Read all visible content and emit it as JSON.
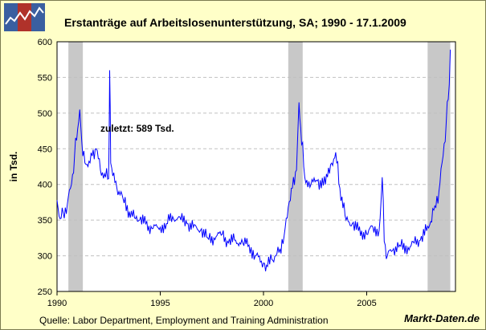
{
  "header": {
    "title": "Erstanträge auf Arbeitslosenunterstützung, SA;  1990 - 17.1.2009",
    "logo_icon": "line-chart-logo-icon"
  },
  "footer": {
    "source": "Quelle: Labor Department, Employment and Training Administration",
    "brand": "Markt-Daten.de"
  },
  "colors": {
    "background": "#FFFFC8",
    "plot_background": "#FFFFFF",
    "series": "#0000FF",
    "recession": "#C8C8C8",
    "grid": "#C0C0C0"
  },
  "chart_data": {
    "type": "line",
    "title": "Erstanträge auf Arbeitslosenunterstützung, SA;  1990 - 17.1.2009",
    "xlabel": "",
    "ylabel": "in Tsd.",
    "xlim": [
      1990,
      2009.3
    ],
    "ylim": [
      250,
      600
    ],
    "x_ticks": [
      1990,
      1995,
      2000,
      2005
    ],
    "y_ticks": [
      250,
      300,
      350,
      400,
      450,
      500,
      550,
      600
    ],
    "grid": "horizontal dashed",
    "annotation": "zuletzt: 589 Tsd.",
    "recessions": [
      [
        1990.55,
        1991.25
      ],
      [
        2001.2,
        2001.9
      ],
      [
        2007.95,
        2009.05
      ]
    ],
    "series": [
      {
        "x": [
          1990.0,
          1990.15,
          1990.3,
          1990.5,
          1990.7,
          1990.85,
          1991.0,
          1991.1,
          1991.2,
          1991.35,
          1991.5,
          1991.7,
          1991.9,
          1992.1,
          1992.3,
          1992.5,
          1992.55,
          1992.6,
          1992.7,
          1992.9,
          1993.2,
          1993.5,
          1993.8,
          1994.0,
          1994.3,
          1994.6,
          1995.0,
          1995.3,
          1995.6,
          1996.0,
          1996.3,
          1996.6,
          1997.0,
          1997.3,
          1997.6,
          1998.0,
          1998.3,
          1998.6,
          1999.0,
          1999.3,
          1999.6,
          2000.0,
          2000.2,
          2000.4,
          2000.6,
          2000.8,
          2001.0,
          2001.2,
          2001.4,
          2001.6,
          2001.72,
          2001.8,
          2002.0,
          2002.3,
          2002.6,
          2003.0,
          2003.3,
          2003.5,
          2003.7,
          2004.0,
          2004.3,
          2004.6,
          2005.0,
          2005.3,
          2005.6,
          2005.7,
          2005.75,
          2005.85,
          2006.0,
          2006.3,
          2006.6,
          2007.0,
          2007.3,
          2007.6,
          2007.9,
          2008.1,
          2008.3,
          2008.5,
          2008.7,
          2008.85,
          2009.0,
          2009.05
        ],
        "values": [
          378,
          352,
          360,
          372,
          400,
          440,
          478,
          505,
          460,
          430,
          425,
          440,
          450,
          420,
          415,
          408,
          560,
          430,
          412,
          395,
          380,
          362,
          352,
          350,
          345,
          338,
          340,
          345,
          355,
          350,
          345,
          340,
          338,
          325,
          325,
          330,
          318,
          322,
          318,
          315,
          300,
          290,
          285,
          295,
          300,
          310,
          328,
          368,
          395,
          420,
          515,
          480,
          410,
          400,
          405,
          400,
          430,
          445,
          395,
          350,
          345,
          335,
          330,
          340,
          335,
          380,
          410,
          320,
          300,
          310,
          315,
          312,
          318,
          322,
          335,
          348,
          370,
          390,
          440,
          485,
          540,
          589
        ]
      }
    ]
  }
}
